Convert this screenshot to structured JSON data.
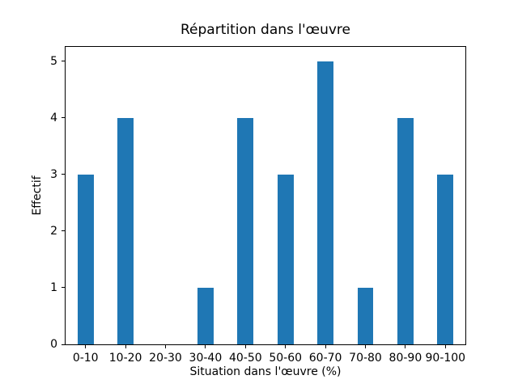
{
  "chart_data": {
    "type": "bar",
    "title": "Répartition dans l'œuvre",
    "xlabel": "Situation dans l'œuvre (%)",
    "ylabel": "Effectif",
    "categories": [
      "0-10",
      "10-20",
      "20-30",
      "30-40",
      "40-50",
      "50-60",
      "60-70",
      "70-80",
      "80-90",
      "90-100"
    ],
    "values": [
      3,
      4,
      0,
      1,
      4,
      3,
      5,
      1,
      4,
      3
    ],
    "yticks": [
      0,
      1,
      2,
      3,
      4,
      5
    ],
    "ylim": [
      0,
      5.25
    ],
    "bar_width_fraction": 0.4,
    "bar_color": "#1f77b4",
    "axis_color": "#000000",
    "background_color": "#ffffff",
    "grid": false,
    "legend": "none"
  }
}
